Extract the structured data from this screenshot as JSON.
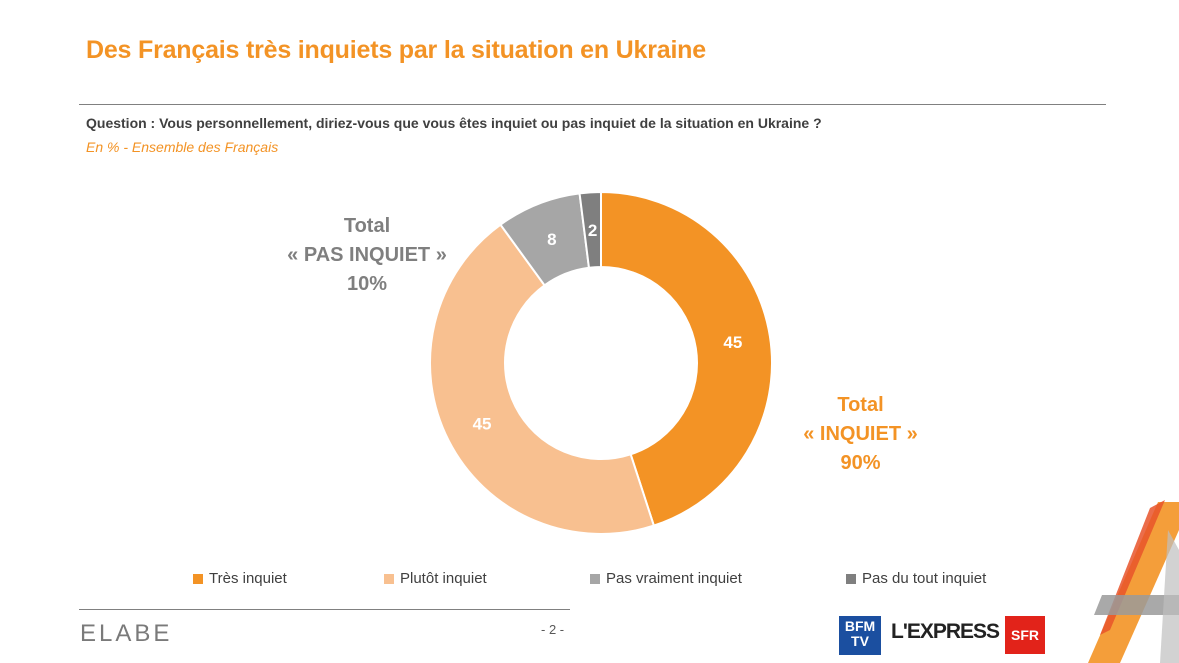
{
  "title": "Des Français très inquiets par la situation en Ukraine",
  "question": "Question : Vous personnellement, diriez-vous que vous êtes inquiet ou pas inquiet de la situation en Ukraine ?",
  "base": "En % - Ensemble des Français",
  "callouts": {
    "pas_inquiet": {
      "line1": "Total",
      "line2": "« PAS INQUIET »",
      "line3": "10%"
    },
    "inquiet": {
      "line1": "Total",
      "line2": "« INQUIET »",
      "line3": "90%"
    }
  },
  "chart_data": {
    "type": "pie",
    "donut": true,
    "categories": [
      "Très inquiet",
      "Plutôt inquiet",
      "Pas vraiment inquiet",
      "Pas du tout inquiet"
    ],
    "values": [
      45,
      45,
      8,
      2
    ],
    "colors": [
      "#F39325",
      "#F8C090",
      "#A6A6A6",
      "#7F7F7F"
    ],
    "data_labels": [
      "45",
      "45",
      "8",
      "2"
    ],
    "legend_position": "bottom"
  },
  "footer": {
    "logo_left": "ELABE",
    "page": "- 2 -",
    "partner_bfm": "BFM TV",
    "partner_express": "L'EXPRESS",
    "partner_sfr": "SFR"
  }
}
